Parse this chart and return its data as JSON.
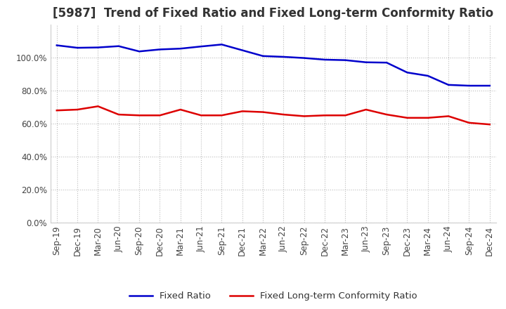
{
  "title": "[5987]  Trend of Fixed Ratio and Fixed Long-term Conformity Ratio",
  "x_labels": [
    "Sep-19",
    "Dec-19",
    "Mar-20",
    "Jun-20",
    "Sep-20",
    "Dec-20",
    "Mar-21",
    "Jun-21",
    "Sep-21",
    "Dec-21",
    "Mar-22",
    "Jun-22",
    "Sep-22",
    "Dec-22",
    "Mar-23",
    "Jun-23",
    "Sep-23",
    "Dec-23",
    "Mar-24",
    "Jun-24",
    "Sep-24",
    "Dec-24"
  ],
  "fixed_ratio": [
    107.5,
    106.0,
    106.2,
    107.0,
    103.8,
    105.0,
    105.5,
    106.8,
    108.0,
    104.5,
    101.0,
    100.5,
    99.8,
    98.8,
    98.5,
    97.2,
    97.0,
    91.0,
    89.0,
    83.5,
    83.0,
    83.0
  ],
  "fixed_lt_ratio": [
    68.0,
    68.5,
    70.5,
    65.5,
    65.0,
    65.0,
    68.5,
    65.0,
    65.0,
    67.5,
    67.0,
    65.5,
    64.5,
    65.0,
    65.0,
    68.5,
    65.5,
    63.5,
    63.5,
    64.5,
    60.5,
    59.5
  ],
  "line_color_fixed": "#0000CC",
  "line_color_lt": "#DD0000",
  "ylim": [
    0,
    120
  ],
  "yticks": [
    0,
    20,
    40,
    60,
    80,
    100
  ],
  "background_color": "#FFFFFF",
  "grid_color": "#BBBBBB",
  "legend_fixed": "Fixed Ratio",
  "legend_lt": "Fixed Long-term Conformity Ratio",
  "title_fontsize": 12,
  "tick_fontsize": 8.5,
  "legend_fontsize": 9.5
}
